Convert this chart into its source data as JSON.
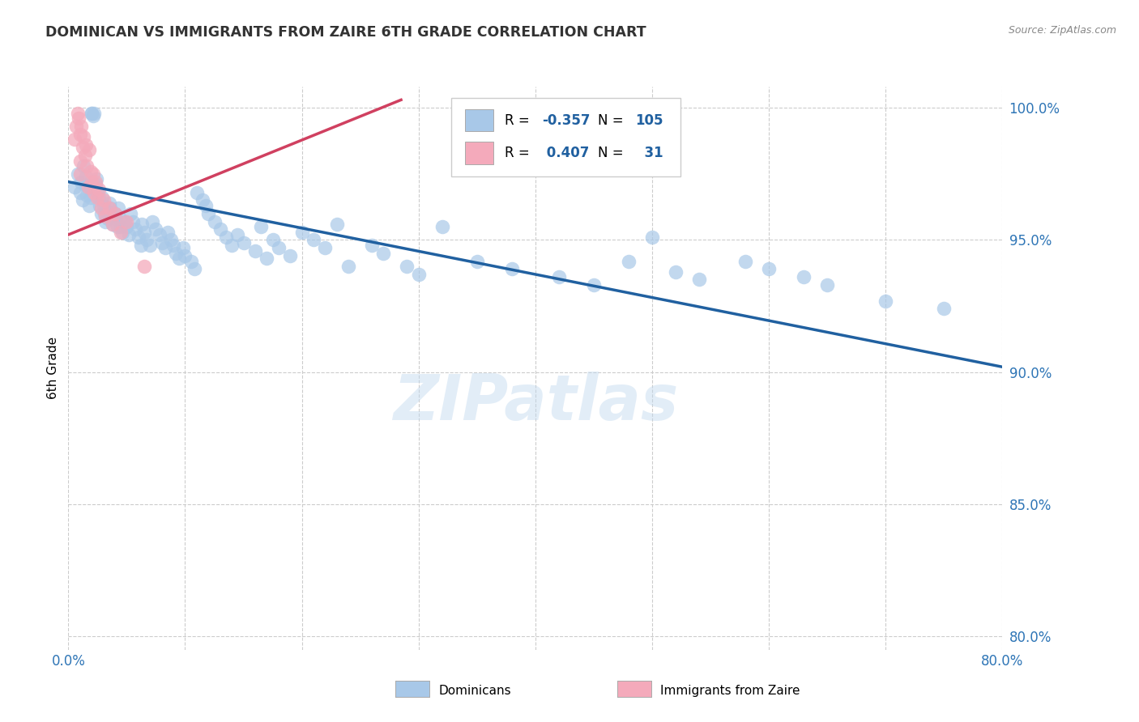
{
  "title": "DOMINICAN VS IMMIGRANTS FROM ZAIRE 6TH GRADE CORRELATION CHART",
  "source_text": "Source: ZipAtlas.com",
  "ylabel": "6th Grade",
  "legend_label_1": "Dominicans",
  "legend_label_2": "Immigrants from Zaire",
  "R_blue": -0.357,
  "N_blue": 105,
  "R_pink": 0.407,
  "N_pink": 31,
  "blue_color": "#A8C8E8",
  "pink_color": "#F4AABB",
  "blue_line_color": "#2060A0",
  "pink_line_color": "#D04060",
  "title_color": "#333333",
  "axis_tick_color": "#2E75B6",
  "background_color": "#FFFFFF",
  "grid_color": "#CCCCCC",
  "watermark_text": "ZIPatlas",
  "xlim": [
    0.0,
    0.8
  ],
  "ylim": [
    0.795,
    1.008
  ],
  "yticks": [
    0.8,
    0.85,
    0.9,
    0.95,
    1.0
  ],
  "ytick_labels": [
    "80.0%",
    "85.0%",
    "90.0%",
    "95.0%",
    "100.0%"
  ],
  "xticks": [
    0.0,
    0.1,
    0.2,
    0.3,
    0.4,
    0.5,
    0.6,
    0.7,
    0.8
  ],
  "blue_trend_x0": 0.0,
  "blue_trend_x1": 0.8,
  "blue_trend_y0": 0.972,
  "blue_trend_y1": 0.902,
  "pink_trend_x0": 0.0,
  "pink_trend_x1": 0.285,
  "pink_trend_y0": 0.952,
  "pink_trend_y1": 1.003,
  "blue_x": [
    0.005,
    0.008,
    0.01,
    0.011,
    0.012,
    0.013,
    0.014,
    0.015,
    0.016,
    0.017,
    0.018,
    0.019,
    0.02,
    0.02,
    0.021,
    0.022,
    0.023,
    0.024,
    0.025,
    0.026,
    0.027,
    0.028,
    0.029,
    0.03,
    0.031,
    0.032,
    0.033,
    0.034,
    0.035,
    0.036,
    0.037,
    0.038,
    0.04,
    0.041,
    0.042,
    0.043,
    0.044,
    0.045,
    0.046,
    0.048,
    0.05,
    0.052,
    0.053,
    0.055,
    0.057,
    0.06,
    0.062,
    0.063,
    0.065,
    0.067,
    0.07,
    0.072,
    0.075,
    0.078,
    0.08,
    0.083,
    0.085,
    0.088,
    0.09,
    0.092,
    0.095,
    0.098,
    0.1,
    0.105,
    0.108,
    0.11,
    0.115,
    0.118,
    0.12,
    0.125,
    0.13,
    0.135,
    0.14,
    0.145,
    0.15,
    0.16,
    0.165,
    0.17,
    0.175,
    0.18,
    0.19,
    0.2,
    0.21,
    0.22,
    0.23,
    0.24,
    0.26,
    0.27,
    0.29,
    0.3,
    0.32,
    0.35,
    0.38,
    0.42,
    0.45,
    0.48,
    0.5,
    0.52,
    0.54,
    0.58,
    0.6,
    0.63,
    0.65,
    0.7,
    0.75
  ],
  "blue_y": [
    0.97,
    0.975,
    0.968,
    0.972,
    0.965,
    0.978,
    0.971,
    0.974,
    0.967,
    0.97,
    0.963,
    0.966,
    0.998,
    0.998,
    0.997,
    0.998,
    0.971,
    0.973,
    0.968,
    0.966,
    0.963,
    0.96,
    0.966,
    0.963,
    0.96,
    0.957,
    0.961,
    0.958,
    0.964,
    0.962,
    0.959,
    0.956,
    0.96,
    0.958,
    0.955,
    0.962,
    0.958,
    0.955,
    0.953,
    0.957,
    0.955,
    0.952,
    0.96,
    0.957,
    0.954,
    0.951,
    0.948,
    0.956,
    0.953,
    0.95,
    0.948,
    0.957,
    0.954,
    0.952,
    0.949,
    0.947,
    0.953,
    0.95,
    0.948,
    0.945,
    0.943,
    0.947,
    0.944,
    0.942,
    0.939,
    0.968,
    0.965,
    0.963,
    0.96,
    0.957,
    0.954,
    0.951,
    0.948,
    0.952,
    0.949,
    0.946,
    0.955,
    0.943,
    0.95,
    0.947,
    0.944,
    0.953,
    0.95,
    0.947,
    0.956,
    0.94,
    0.948,
    0.945,
    0.94,
    0.937,
    0.955,
    0.942,
    0.939,
    0.936,
    0.933,
    0.942,
    0.951,
    0.938,
    0.935,
    0.942,
    0.939,
    0.936,
    0.933,
    0.927,
    0.924
  ],
  "pink_x": [
    0.005,
    0.007,
    0.008,
    0.009,
    0.01,
    0.01,
    0.01,
    0.011,
    0.012,
    0.013,
    0.014,
    0.015,
    0.016,
    0.017,
    0.018,
    0.019,
    0.02,
    0.021,
    0.022,
    0.023,
    0.025,
    0.026,
    0.028,
    0.03,
    0.032,
    0.035,
    0.038,
    0.04,
    0.045,
    0.05,
    0.065
  ],
  "pink_y": [
    0.988,
    0.993,
    0.998,
    0.996,
    0.975,
    0.98,
    0.99,
    0.993,
    0.985,
    0.989,
    0.982,
    0.986,
    0.978,
    0.97,
    0.984,
    0.976,
    0.972,
    0.975,
    0.968,
    0.972,
    0.966,
    0.969,
    0.962,
    0.965,
    0.959,
    0.962,
    0.956,
    0.96,
    0.953,
    0.957,
    0.94
  ]
}
